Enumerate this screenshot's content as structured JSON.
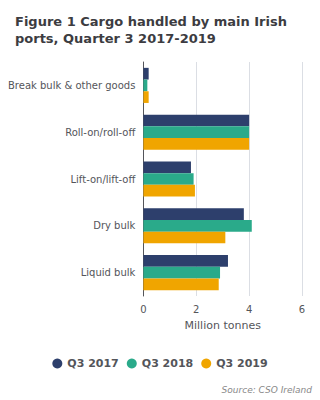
{
  "chart_data": {
    "type": "bar",
    "orientation": "horizontal",
    "title": "Figure 1 Cargo handled by main Irish\nports, Quarter 3 2017-2019",
    "categories": [
      "Liquid bulk",
      "Dry bulk",
      "Lift-on/lift-off",
      "Roll-on/roll-off",
      "Break bulk & other goods"
    ],
    "series": [
      {
        "name": "Q3 2017",
        "color": "#2d3f6c",
        "values": [
          3.2,
          3.8,
          1.8,
          4.0,
          0.2
        ]
      },
      {
        "name": "Q3 2018",
        "color": "#2aaa8a",
        "values": [
          2.9,
          4.1,
          1.9,
          4.0,
          0.15
        ]
      },
      {
        "name": "Q3 2019",
        "color": "#f0a500",
        "values": [
          2.85,
          3.1,
          1.95,
          4.0,
          0.2
        ]
      }
    ],
    "xlabel": "Million tonnes",
    "xlim": [
      0,
      6
    ],
    "xticks": [
      0,
      2,
      4,
      6
    ],
    "grid": true,
    "legend": "bottom",
    "annotations": [
      "Source: CSO Ireland"
    ]
  }
}
